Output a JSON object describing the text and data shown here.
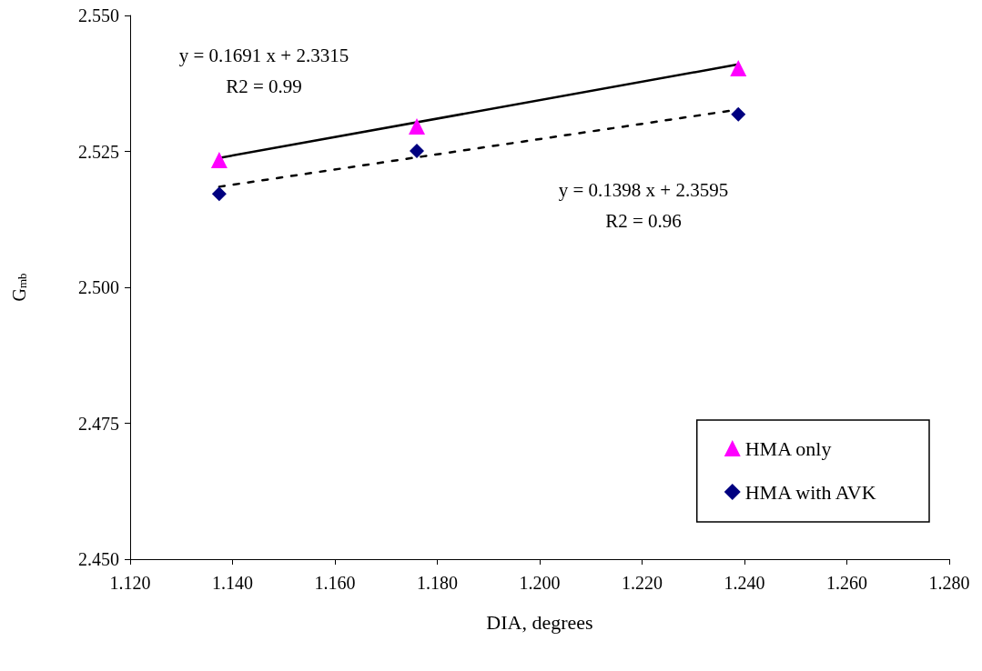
{
  "chart_data": {
    "type": "scatter",
    "xlabel": "DIA, degrees",
    "ylabel": "G$_{mb}$",
    "xlim": [
      1.12,
      1.28
    ],
    "xticks": [
      {
        "value": 1.12,
        "label": "1.120"
      },
      {
        "value": 1.14,
        "label": "1.140"
      },
      {
        "value": 1.16,
        "label": "1.160"
      },
      {
        "value": 1.18,
        "label": "1.180"
      },
      {
        "value": 1.2,
        "label": "1.200"
      },
      {
        "value": 1.22,
        "label": "1.220"
      },
      {
        "value": 1.24,
        "label": "1.240"
      },
      {
        "value": 1.26,
        "label": "1.260"
      },
      {
        "value": 1.28,
        "label": "1.280"
      }
    ],
    "ylim": [
      2.45,
      2.55
    ],
    "yticks": [
      {
        "value": 2.45,
        "label": "2.450"
      },
      {
        "value": 2.475,
        "label": "2.475"
      },
      {
        "value": 2.5,
        "label": "2.500"
      },
      {
        "value": 2.525,
        "label": "2.525"
      },
      {
        "value": 2.55,
        "label": "2.550"
      }
    ],
    "grid": false,
    "legend": "bottom right",
    "series": [
      {
        "name": "HMA only",
        "marker": "triangle",
        "color": "#ff00ff",
        "x": [
          1.1374,
          1.176,
          1.2388
        ],
        "values": [
          2.5234,
          2.5296,
          2.5403
        ]
      },
      {
        "name": "HMA with AVK",
        "marker": "diamond",
        "color": "#000080",
        "x": [
          1.1374,
          1.176,
          1.2388
        ],
        "values": [
          2.5172,
          2.5251,
          2.5318
        ]
      },
      {
        "type": "line",
        "marker": "none",
        "line_style": "solid",
        "color": "#000000",
        "x": [
          1.1374,
          1.2388
        ],
        "values": [
          2.5238,
          2.541
        ]
      },
      {
        "type": "line",
        "marker": "none",
        "line_style": "dashed",
        "color": "#000000",
        "x": [
          1.1374,
          1.2388
        ],
        "values": [
          2.5185,
          2.5327
        ]
      }
    ],
    "annotations": [
      "y = 0.1691 x + 2.3315\nR2 = 0.99",
      "y = 0.1398 x + 2.3595\nR2 = 0.96"
    ]
  }
}
